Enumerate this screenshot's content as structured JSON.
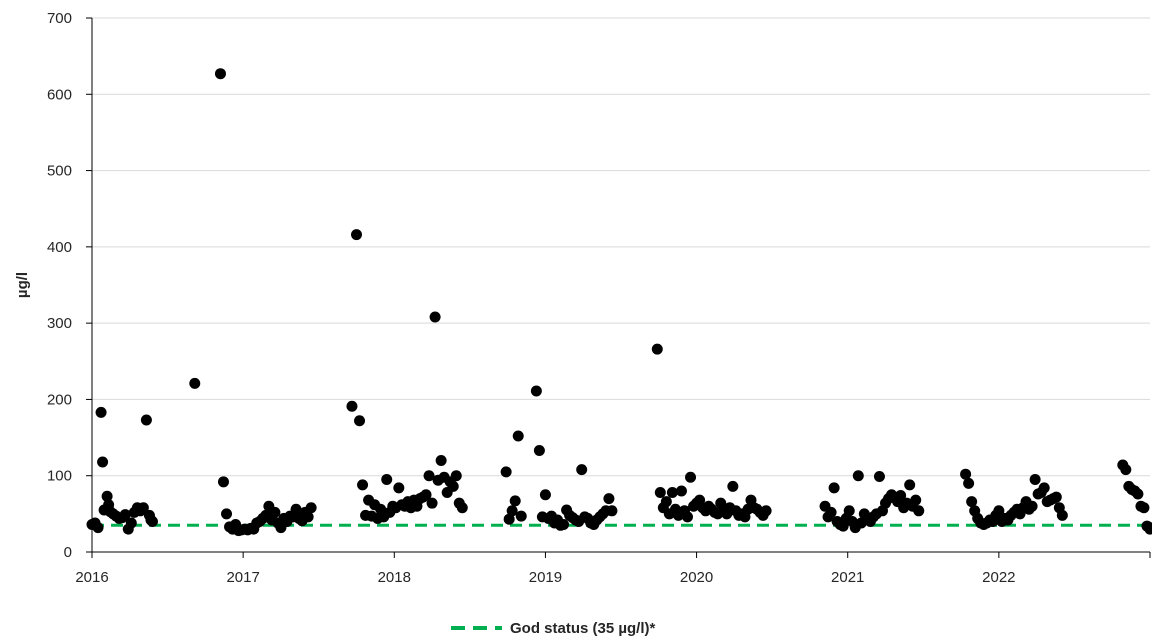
{
  "chart_data": {
    "type": "scatter",
    "ylabel": "µg/l",
    "ylim": [
      0,
      700
    ],
    "yticks": [
      "0",
      "100",
      "200",
      "300",
      "400",
      "500",
      "600",
      "700"
    ],
    "xlim": [
      2016,
      2023
    ],
    "xticks": [
      "2016",
      "2017",
      "2018",
      "2019",
      "2020",
      "2021",
      "2022"
    ],
    "grid": "horizontal",
    "legend_position": "bottom",
    "point_color": "#000000",
    "series": [
      {
        "points": [
          [
            2016.0,
            36
          ],
          [
            2016.02,
            38
          ],
          [
            2016.04,
            32
          ],
          [
            2016.06,
            183
          ],
          [
            2016.07,
            118
          ],
          [
            2016.08,
            55
          ],
          [
            2016.1,
            73
          ],
          [
            2016.11,
            62
          ],
          [
            2016.12,
            53
          ],
          [
            2016.14,
            50
          ],
          [
            2016.16,
            47
          ],
          [
            2016.18,
            44
          ],
          [
            2016.2,
            45
          ],
          [
            2016.22,
            49
          ],
          [
            2016.24,
            30
          ],
          [
            2016.26,
            38
          ],
          [
            2016.28,
            52
          ],
          [
            2016.3,
            58
          ],
          [
            2016.32,
            54
          ],
          [
            2016.34,
            58
          ],
          [
            2016.36,
            173
          ],
          [
            2016.38,
            48
          ],
          [
            2016.4,
            40
          ],
          [
            2016.39,
            42
          ],
          [
            2016.68,
            221
          ],
          [
            2016.85,
            627
          ],
          [
            2016.87,
            92
          ],
          [
            2016.89,
            50
          ],
          [
            2016.91,
            33
          ],
          [
            2016.93,
            30
          ],
          [
            2016.95,
            36
          ],
          [
            2016.97,
            28
          ],
          [
            2016.99,
            29
          ],
          [
            2017.01,
            30
          ],
          [
            2017.03,
            29
          ],
          [
            2017.05,
            31
          ],
          [
            2017.07,
            30
          ],
          [
            2017.09,
            38
          ],
          [
            2017.11,
            40
          ],
          [
            2017.13,
            44
          ],
          [
            2017.15,
            48
          ],
          [
            2017.17,
            60
          ],
          [
            2017.19,
            42
          ],
          [
            2017.21,
            52
          ],
          [
            2017.23,
            38
          ],
          [
            2017.25,
            32
          ],
          [
            2017.27,
            44
          ],
          [
            2017.29,
            40
          ],
          [
            2017.31,
            47
          ],
          [
            2017.33,
            46
          ],
          [
            2017.35,
            56
          ],
          [
            2017.37,
            44
          ],
          [
            2017.39,
            41
          ],
          [
            2017.41,
            52
          ],
          [
            2017.43,
            46
          ],
          [
            2017.45,
            58
          ],
          [
            2017.72,
            191
          ],
          [
            2017.75,
            416
          ],
          [
            2017.77,
            172
          ],
          [
            2017.79,
            88
          ],
          [
            2017.81,
            48
          ],
          [
            2017.83,
            68
          ],
          [
            2017.85,
            47
          ],
          [
            2017.87,
            62
          ],
          [
            2017.89,
            44
          ],
          [
            2017.91,
            56
          ],
          [
            2017.93,
            46
          ],
          [
            2017.95,
            95
          ],
          [
            2017.97,
            52
          ],
          [
            2017.99,
            60
          ],
          [
            2018.01,
            58
          ],
          [
            2018.03,
            84
          ],
          [
            2018.05,
            62
          ],
          [
            2018.07,
            60
          ],
          [
            2018.09,
            66
          ],
          [
            2018.11,
            58
          ],
          [
            2018.13,
            68
          ],
          [
            2018.15,
            60
          ],
          [
            2018.17,
            70
          ],
          [
            2018.19,
            72
          ],
          [
            2018.21,
            75
          ],
          [
            2018.23,
            100
          ],
          [
            2018.25,
            64
          ],
          [
            2018.27,
            308
          ],
          [
            2018.29,
            94
          ],
          [
            2018.31,
            120
          ],
          [
            2018.33,
            98
          ],
          [
            2018.35,
            78
          ],
          [
            2018.37,
            92
          ],
          [
            2018.39,
            86
          ],
          [
            2018.41,
            100
          ],
          [
            2018.43,
            64
          ],
          [
            2018.45,
            58
          ],
          [
            2018.74,
            105
          ],
          [
            2018.76,
            43
          ],
          [
            2018.78,
            54
          ],
          [
            2018.8,
            67
          ],
          [
            2018.82,
            152
          ],
          [
            2018.84,
            47
          ],
          [
            2018.94,
            211
          ],
          [
            2018.96,
            133
          ],
          [
            2018.98,
            46
          ],
          [
            2019.0,
            75
          ],
          [
            2019.02,
            44
          ],
          [
            2019.04,
            47
          ],
          [
            2019.06,
            38
          ],
          [
            2019.08,
            42
          ],
          [
            2019.1,
            35
          ],
          [
            2019.12,
            36
          ],
          [
            2019.14,
            55
          ],
          [
            2019.16,
            48
          ],
          [
            2019.18,
            45
          ],
          [
            2019.2,
            42
          ],
          [
            2019.22,
            40
          ],
          [
            2019.24,
            108
          ],
          [
            2019.26,
            46
          ],
          [
            2019.28,
            44
          ],
          [
            2019.3,
            38
          ],
          [
            2019.32,
            36
          ],
          [
            2019.34,
            42
          ],
          [
            2019.36,
            46
          ],
          [
            2019.38,
            50
          ],
          [
            2019.4,
            54
          ],
          [
            2019.42,
            70
          ],
          [
            2019.44,
            54
          ],
          [
            2019.74,
            266
          ],
          [
            2019.76,
            78
          ],
          [
            2019.78,
            58
          ],
          [
            2019.8,
            66
          ],
          [
            2019.82,
            50
          ],
          [
            2019.84,
            78
          ],
          [
            2019.86,
            56
          ],
          [
            2019.88,
            48
          ],
          [
            2019.9,
            80
          ],
          [
            2019.92,
            54
          ],
          [
            2019.94,
            46
          ],
          [
            2019.96,
            98
          ],
          [
            2019.98,
            60
          ],
          [
            2020.0,
            64
          ],
          [
            2020.02,
            68
          ],
          [
            2020.04,
            58
          ],
          [
            2020.06,
            54
          ],
          [
            2020.08,
            60
          ],
          [
            2020.1,
            56
          ],
          [
            2020.12,
            52
          ],
          [
            2020.14,
            50
          ],
          [
            2020.16,
            64
          ],
          [
            2020.18,
            56
          ],
          [
            2020.2,
            50
          ],
          [
            2020.22,
            58
          ],
          [
            2020.24,
            86
          ],
          [
            2020.26,
            54
          ],
          [
            2020.28,
            48
          ],
          [
            2020.3,
            50
          ],
          [
            2020.32,
            46
          ],
          [
            2020.34,
            56
          ],
          [
            2020.36,
            68
          ],
          [
            2020.38,
            58
          ],
          [
            2020.4,
            56
          ],
          [
            2020.42,
            52
          ],
          [
            2020.44,
            48
          ],
          [
            2020.46,
            54
          ],
          [
            2020.85,
            60
          ],
          [
            2020.87,
            46
          ],
          [
            2020.89,
            52
          ],
          [
            2020.91,
            84
          ],
          [
            2020.93,
            40
          ],
          [
            2020.95,
            36
          ],
          [
            2020.97,
            34
          ],
          [
            2020.99,
            44
          ],
          [
            2021.01,
            54
          ],
          [
            2021.03,
            40
          ],
          [
            2021.05,
            32
          ],
          [
            2021.07,
            100
          ],
          [
            2021.09,
            38
          ],
          [
            2021.11,
            50
          ],
          [
            2021.13,
            44
          ],
          [
            2021.15,
            40
          ],
          [
            2021.17,
            46
          ],
          [
            2021.19,
            50
          ],
          [
            2021.21,
            99
          ],
          [
            2021.23,
            54
          ],
          [
            2021.25,
            64
          ],
          [
            2021.27,
            70
          ],
          [
            2021.29,
            75
          ],
          [
            2021.31,
            72
          ],
          [
            2021.33,
            66
          ],
          [
            2021.35,
            74
          ],
          [
            2021.37,
            58
          ],
          [
            2021.39,
            64
          ],
          [
            2021.41,
            88
          ],
          [
            2021.43,
            60
          ],
          [
            2021.45,
            68
          ],
          [
            2021.47,
            54
          ],
          [
            2021.78,
            102
          ],
          [
            2021.8,
            90
          ],
          [
            2021.82,
            66
          ],
          [
            2021.84,
            54
          ],
          [
            2021.86,
            44
          ],
          [
            2021.88,
            38
          ],
          [
            2021.9,
            36
          ],
          [
            2021.92,
            38
          ],
          [
            2021.94,
            42
          ],
          [
            2021.96,
            40
          ],
          [
            2021.98,
            48
          ],
          [
            2022.0,
            54
          ],
          [
            2022.02,
            40
          ],
          [
            2022.04,
            44
          ],
          [
            2022.06,
            42
          ],
          [
            2022.08,
            48
          ],
          [
            2022.1,
            52
          ],
          [
            2022.12,
            56
          ],
          [
            2022.14,
            50
          ],
          [
            2022.16,
            58
          ],
          [
            2022.18,
            66
          ],
          [
            2022.2,
            56
          ],
          [
            2022.22,
            60
          ],
          [
            2022.24,
            95
          ],
          [
            2022.26,
            76
          ],
          [
            2022.28,
            78
          ],
          [
            2022.3,
            84
          ],
          [
            2022.32,
            66
          ],
          [
            2022.34,
            68
          ],
          [
            2022.36,
            70
          ],
          [
            2022.38,
            72
          ],
          [
            2022.4,
            58
          ],
          [
            2022.42,
            48
          ],
          [
            2022.82,
            114
          ],
          [
            2022.84,
            108
          ],
          [
            2022.86,
            86
          ],
          [
            2022.88,
            82
          ],
          [
            2022.9,
            80
          ],
          [
            2022.92,
            76
          ],
          [
            2022.94,
            60
          ],
          [
            2022.96,
            58
          ],
          [
            2022.98,
            34
          ],
          [
            2023.0,
            30
          ],
          [
            2023.0,
            32
          ]
        ]
      }
    ],
    "reference_line": {
      "label": "God status (35 µg/l)*",
      "value": 35,
      "color": "#00b050",
      "style": "dashed"
    }
  }
}
